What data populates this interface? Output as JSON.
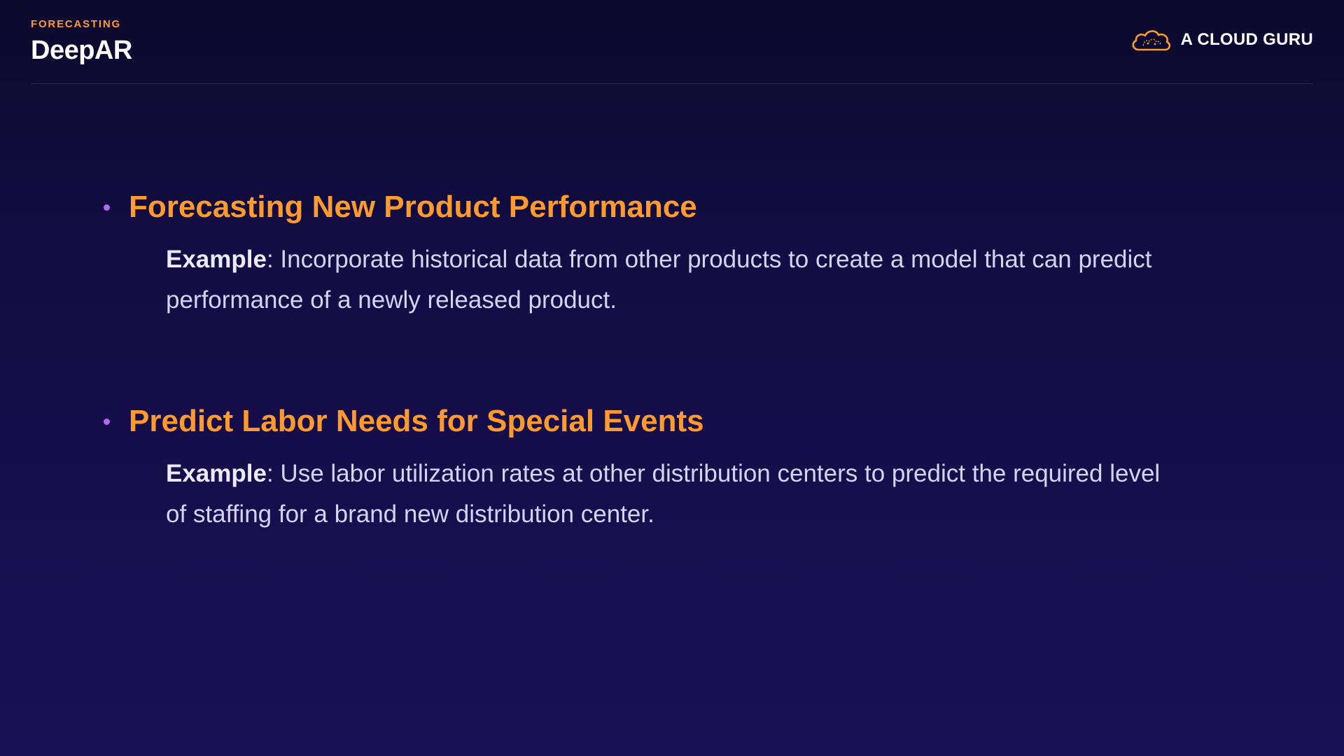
{
  "header": {
    "eyebrow": "FORECASTING",
    "title": "DeepAR"
  },
  "brand": {
    "name": "A CLOUD GURU",
    "logo_icon": "cloud-logo-icon",
    "accent_color": "#ff9a2e"
  },
  "bullets": [
    {
      "title": "Forecasting New Product Performance",
      "example_label": "Example",
      "example_text": ": Incorporate historical data from other products to create a model that can predict performance of a newly released product."
    },
    {
      "title": "Predict Labor Needs for Special Events",
      "example_label": "Example",
      "example_text": ": Use labor utilization rates at other distribution centers to predict the required level of staffing for a brand new distribution center."
    }
  ],
  "colors": {
    "accent": "#ff9a2e",
    "bullet_dot": "#b36bf2",
    "background_top": "#0b0a2c",
    "background_bottom": "#1a1156"
  }
}
